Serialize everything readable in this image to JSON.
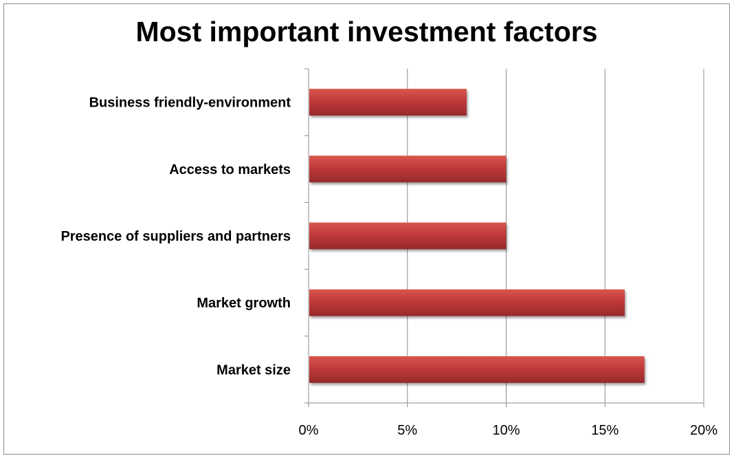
{
  "chart_data": {
    "type": "bar",
    "orientation": "horizontal",
    "title": "Most important investment factors",
    "xlabel": "",
    "ylabel": "",
    "categories": [
      "Business friendly-environment",
      "Access to markets",
      "Presence of suppliers and partners",
      "Market growth",
      "Market size"
    ],
    "values": [
      8,
      10,
      10,
      16,
      17
    ],
    "value_unit": "%",
    "xlim": [
      0,
      20
    ],
    "xticks": [
      0,
      5,
      10,
      15,
      20
    ],
    "xtick_labels": [
      "0%",
      "5%",
      "10%",
      "15%",
      "20%"
    ],
    "grid": "vertical",
    "legend": "none",
    "bar_color": "#c0393a"
  }
}
